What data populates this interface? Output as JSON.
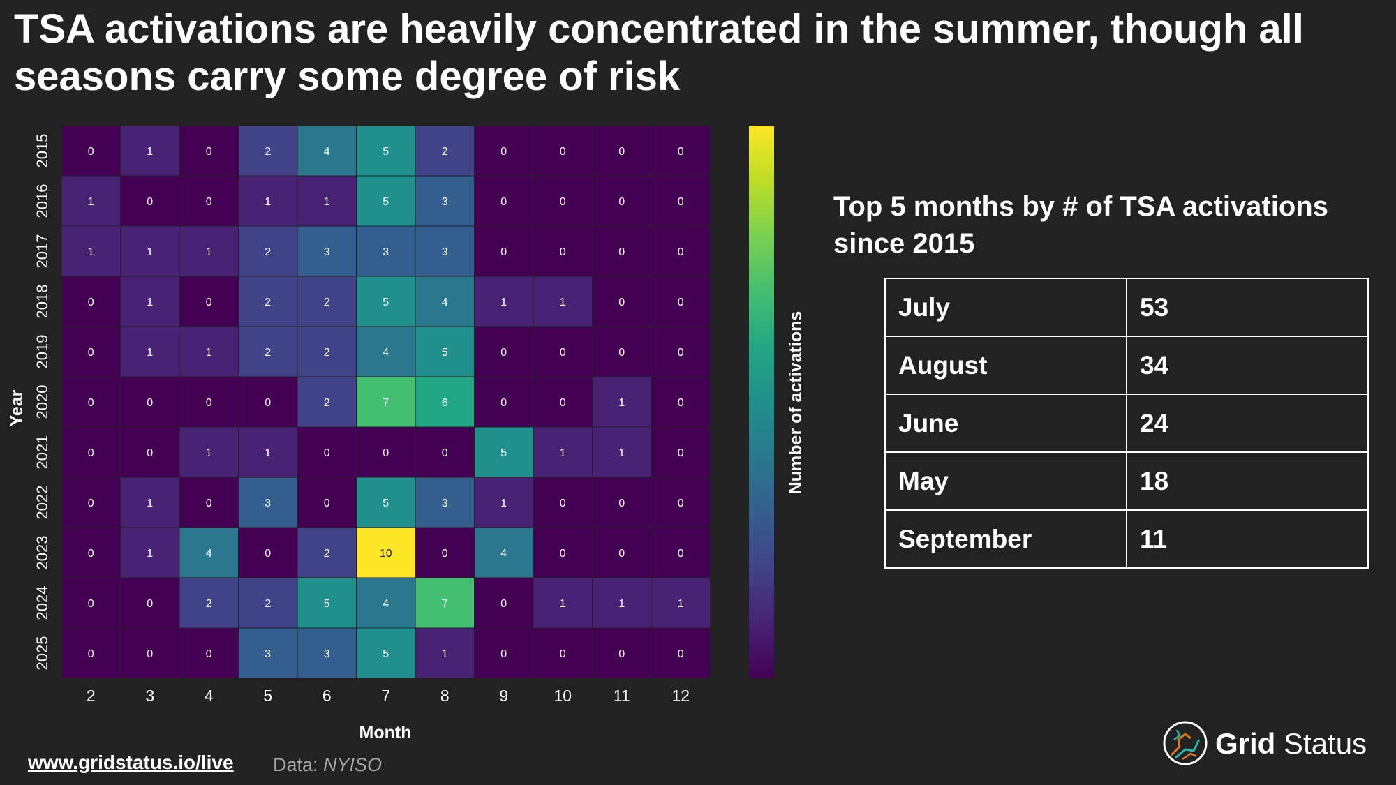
{
  "title": "TSA activations are heavily concentrated in the summer, though all seasons carry some degree of risk",
  "chart_data": {
    "type": "heatmap",
    "xlabel": "Month",
    "ylabel": "Year",
    "colorbar_label": "Number of activations",
    "colormap": "viridis",
    "value_range": [
      0,
      10
    ],
    "x_categories": [
      "2",
      "3",
      "4",
      "5",
      "6",
      "7",
      "8",
      "9",
      "10",
      "11",
      "12"
    ],
    "y_categories": [
      "2015",
      "2016",
      "2017",
      "2018",
      "2019",
      "2020",
      "2021",
      "2022",
      "2023",
      "2024",
      "2025"
    ],
    "values": [
      [
        0,
        1,
        0,
        2,
        4,
        5,
        2,
        0,
        0,
        0,
        0
      ],
      [
        1,
        0,
        0,
        1,
        1,
        5,
        3,
        0,
        0,
        0,
        0
      ],
      [
        1,
        1,
        1,
        2,
        3,
        3,
        3,
        0,
        0,
        0,
        0
      ],
      [
        0,
        1,
        0,
        2,
        2,
        5,
        4,
        1,
        1,
        0,
        0
      ],
      [
        0,
        1,
        1,
        2,
        2,
        4,
        5,
        0,
        0,
        0,
        0
      ],
      [
        0,
        0,
        0,
        0,
        2,
        7,
        6,
        0,
        0,
        1,
        0
      ],
      [
        0,
        0,
        1,
        1,
        0,
        0,
        0,
        5,
        1,
        1,
        0
      ],
      [
        0,
        1,
        0,
        3,
        0,
        5,
        3,
        1,
        0,
        0,
        0
      ],
      [
        0,
        1,
        4,
        0,
        2,
        10,
        0,
        4,
        0,
        0,
        0
      ],
      [
        0,
        0,
        2,
        2,
        5,
        4,
        7,
        0,
        1,
        1,
        1
      ],
      [
        0,
        0,
        0,
        3,
        3,
        5,
        1,
        0,
        0,
        0,
        0
      ]
    ]
  },
  "top5": {
    "heading": "Top 5 months by # of TSA activations since 2015",
    "rows": [
      {
        "month": "July",
        "count": "53"
      },
      {
        "month": "August",
        "count": "34"
      },
      {
        "month": "June",
        "count": "24"
      },
      {
        "month": "May",
        "count": "18"
      },
      {
        "month": "September",
        "count": "11"
      }
    ]
  },
  "footer": {
    "link": "www.gridstatus.io/live",
    "source_prefix": "Data: ",
    "source_name": "NYISO"
  },
  "brand": {
    "part1": "Grid",
    "part2": "Status"
  },
  "colors": {
    "background": "#222222",
    "text": "#ffffff",
    "muted": "#a6a6a6"
  }
}
